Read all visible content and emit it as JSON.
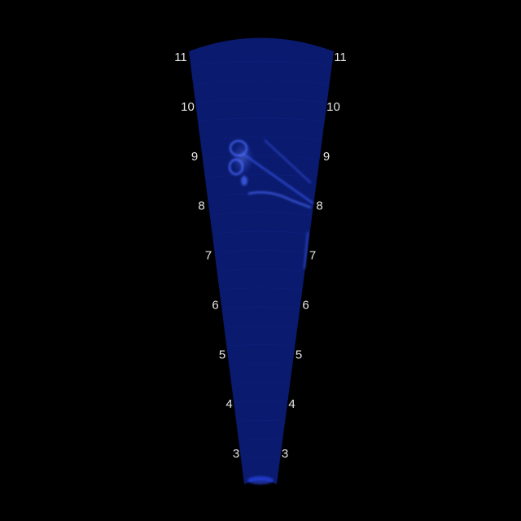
{
  "sonar": {
    "fan_color": "#0a1a6e",
    "echo_color": "#3a5cff",
    "background": "#000000",
    "range_labels": [
      "3",
      "4",
      "5",
      "6",
      "7",
      "8",
      "9",
      "10",
      "11"
    ]
  }
}
